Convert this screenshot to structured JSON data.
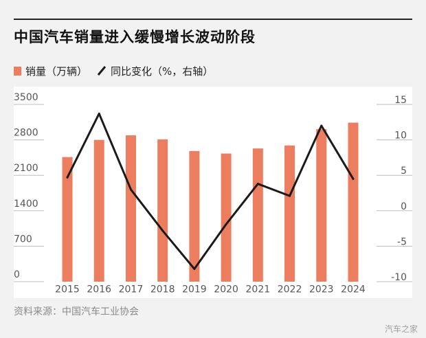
{
  "header": {
    "title": "中国汽车销量进入缓慢增长波动阶段"
  },
  "legend": {
    "bar_label": "销量（万辆）",
    "line_label": "同比变化（%，右轴）"
  },
  "footer": {
    "source": "资料来源：中国汽车工业协会",
    "brand_watermark": "汽车之家"
  },
  "colors": {
    "bar": "#ec7e5f",
    "line": "#1a1a1a",
    "grid": "#bdbdbd",
    "text": "#222222"
  },
  "chart_data": {
    "type": "bar",
    "title": "中国汽车销量进入缓慢增长波动阶段",
    "categories": [
      "2015",
      "2016",
      "2017",
      "2018",
      "2019",
      "2020",
      "2021",
      "2022",
      "2023",
      "2024"
    ],
    "series": [
      {
        "name": "销量（万辆）",
        "type": "bar",
        "axis": "left",
        "values": [
          2460,
          2800,
          2890,
          2810,
          2580,
          2530,
          2630,
          2690,
          3010,
          3140
        ]
      },
      {
        "name": "同比变化（%，右轴）",
        "type": "line",
        "axis": "right",
        "values": [
          4.7,
          13.7,
          3.0,
          -2.8,
          -8.2,
          -1.9,
          3.8,
          2.1,
          12.0,
          4.5
        ]
      }
    ],
    "y_left": {
      "ticks": [
        0,
        700,
        1400,
        2100,
        2800,
        3500
      ],
      "tick_labels": [
        "0",
        "700",
        "1400",
        "2100",
        "2800",
        "3500"
      ],
      "ylim": [
        0,
        3500
      ]
    },
    "y_right": {
      "ticks": [
        -10,
        -5,
        0,
        5,
        10,
        15
      ],
      "tick_labels": [
        "-10",
        "-5",
        "0",
        "5",
        "10",
        "15"
      ],
      "ylim": [
        -10,
        15
      ]
    },
    "grid": true,
    "legend_position": "top-left"
  }
}
